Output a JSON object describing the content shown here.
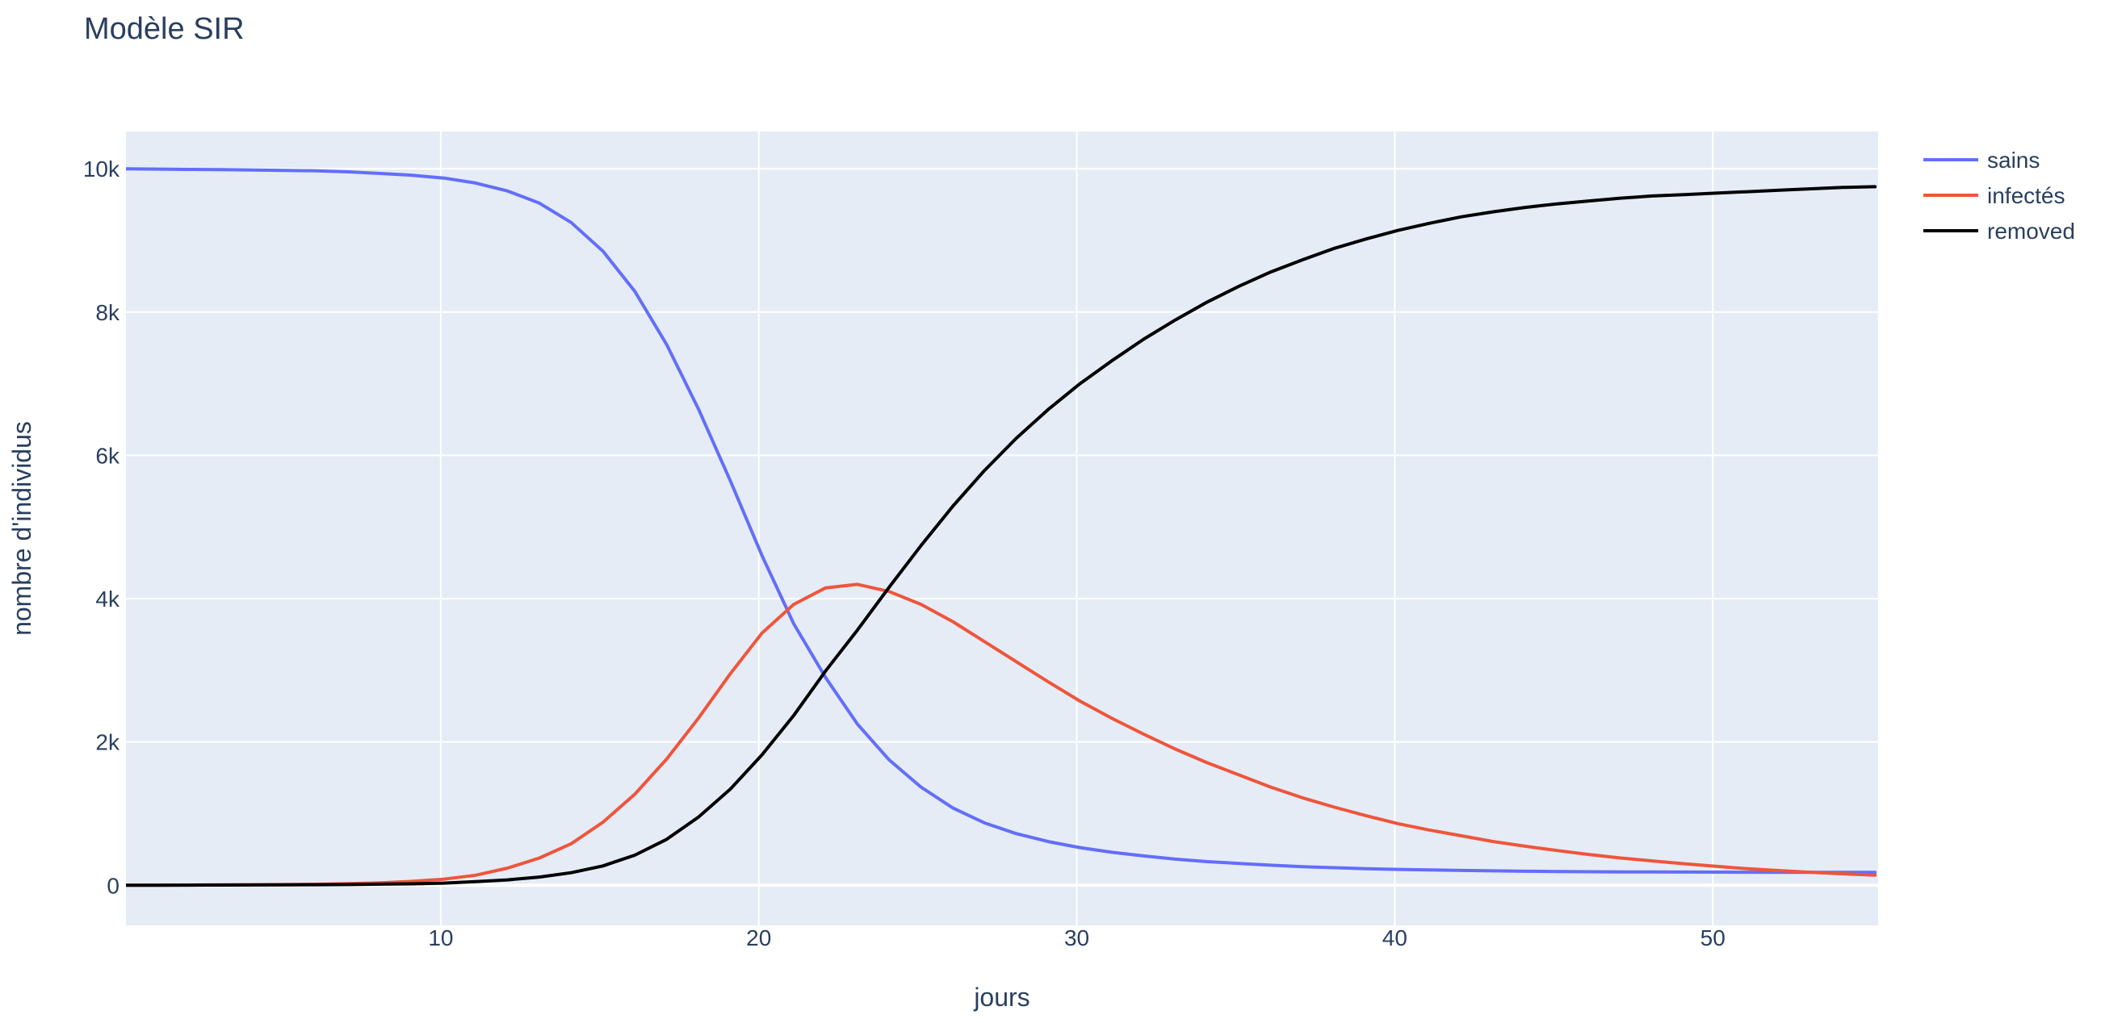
{
  "chart_data": {
    "type": "line",
    "title": "Modèle SIR",
    "xlabel": "jours",
    "ylabel": "nombre d'individus",
    "xlim": [
      0.1,
      55.2
    ],
    "ylim": [
      -560,
      10520
    ],
    "xticks": [
      10,
      20,
      30,
      40,
      50
    ],
    "xtick_labels": [
      "10",
      "20",
      "30",
      "40",
      "50"
    ],
    "yticks": [
      0,
      2000,
      4000,
      6000,
      8000,
      10000
    ],
    "ytick_labels": [
      "0",
      "2k",
      "4k",
      "6k",
      "8k",
      "10k"
    ],
    "grid": true,
    "legend_position": "top-right",
    "plot_background": "#e5ecf6",
    "x": [
      0.1,
      1.1,
      2.1,
      3.1,
      4.1,
      5.1,
      6.1,
      7.1,
      8.1,
      9.1,
      10.1,
      11.1,
      12.1,
      13.1,
      14.1,
      15.1,
      16.1,
      17.1,
      18.1,
      19.1,
      20.1,
      21.1,
      22.1,
      23.1,
      24.1,
      25.1,
      26.1,
      27.1,
      28.1,
      29.1,
      30.1,
      31.1,
      32.1,
      33.1,
      34.1,
      35.1,
      36.1,
      37.1,
      38.1,
      39.1,
      40.1,
      41.1,
      42.1,
      43.1,
      44.1,
      45.1,
      46.1,
      47.1,
      48.1,
      49.1,
      50.1,
      51.1,
      52.1,
      53.1,
      54.1,
      55.1
    ],
    "series": [
      {
        "name": "sains",
        "color": "#636efa",
        "values": [
          9999,
          9995,
          9991,
          9987,
          9982,
          9977,
          9972,
          9957,
          9935,
          9910,
          9870,
          9800,
          9690,
          9520,
          9250,
          8850,
          8290,
          7550,
          6650,
          5650,
          4600,
          3650,
          2900,
          2250,
          1750,
          1370,
          1080,
          870,
          720,
          610,
          525,
          460,
          410,
          365,
          330,
          305,
          280,
          260,
          245,
          232,
          222,
          214,
          207,
          201,
          196,
          192,
          189,
          187,
          185,
          184,
          183,
          182,
          181,
          181,
          180,
          180
        ]
      },
      {
        "name": "infectés",
        "color": "#ef553b",
        "values": [
          1,
          2,
          3,
          5,
          7,
          10,
          14,
          22,
          35,
          55,
          85,
          140,
          240,
          380,
          580,
          880,
          1270,
          1760,
          2330,
          2950,
          3520,
          3920,
          4150,
          4200,
          4100,
          3920,
          3680,
          3400,
          3120,
          2840,
          2570,
          2330,
          2110,
          1900,
          1710,
          1540,
          1370,
          1220,
          1090,
          970,
          860,
          770,
          690,
          610,
          545,
          485,
          430,
          380,
          340,
          300,
          265,
          230,
          205,
          180,
          160,
          140
        ]
      },
      {
        "name": "removed",
        "color": "#000000",
        "values": [
          0,
          1,
          2,
          3,
          4,
          5,
          7,
          10,
          15,
          20,
          30,
          50,
          75,
          115,
          175,
          270,
          420,
          640,
          950,
          1340,
          1820,
          2370,
          2990,
          3560,
          4160,
          4740,
          5290,
          5790,
          6240,
          6640,
          7000,
          7320,
          7620,
          7890,
          8140,
          8360,
          8560,
          8730,
          8890,
          9020,
          9140,
          9240,
          9330,
          9400,
          9460,
          9510,
          9550,
          9590,
          9620,
          9640,
          9660,
          9680,
          9700,
          9720,
          9740,
          9750
        ]
      }
    ]
  }
}
